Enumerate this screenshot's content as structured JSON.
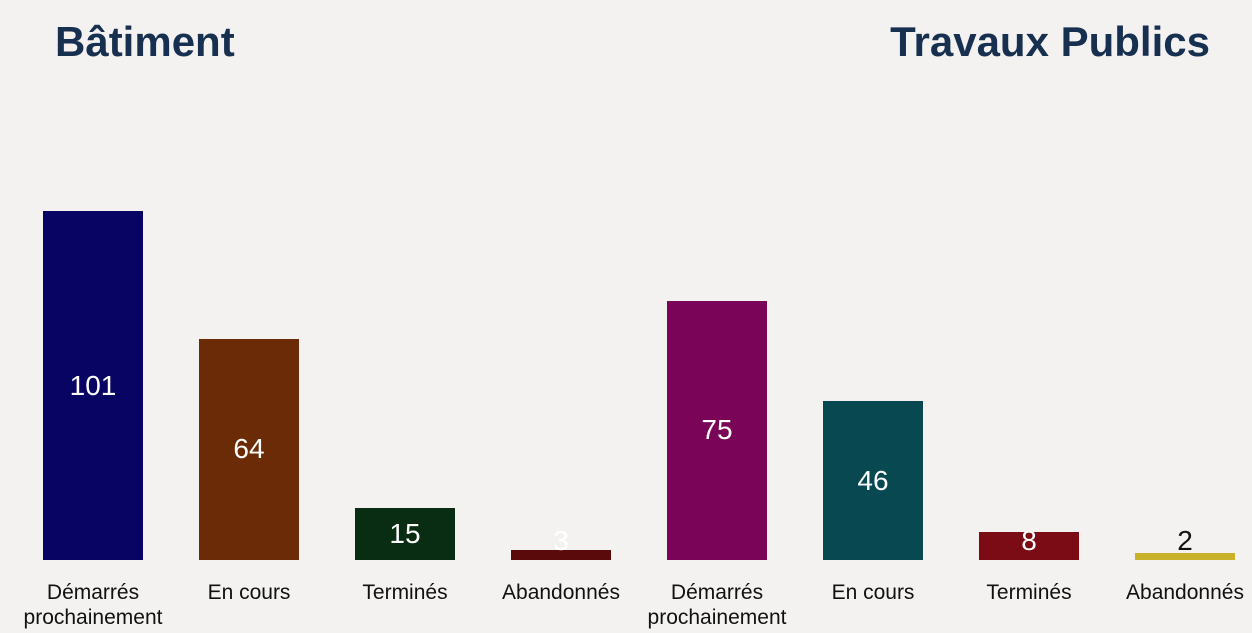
{
  "chart_data": [
    {
      "type": "bar",
      "title": "Bâtiment",
      "categories": [
        "Démarrés prochainement",
        "En cours",
        "Terminés",
        "Abandonnés"
      ],
      "values": [
        101,
        64,
        15,
        3
      ],
      "colors": [
        "#070463",
        "#6a2b06",
        "#082d12",
        "#5a0a0a"
      ]
    },
    {
      "type": "bar",
      "title": "Travaux Publics",
      "categories": [
        "Démarrés prochainement",
        "En cours",
        "Terminés",
        "Abandonnés"
      ],
      "values": [
        75,
        46,
        8,
        2
      ],
      "colors": [
        "#7a0558",
        "#084851",
        "#7b0b14",
        "#c9b12a"
      ]
    }
  ]
}
